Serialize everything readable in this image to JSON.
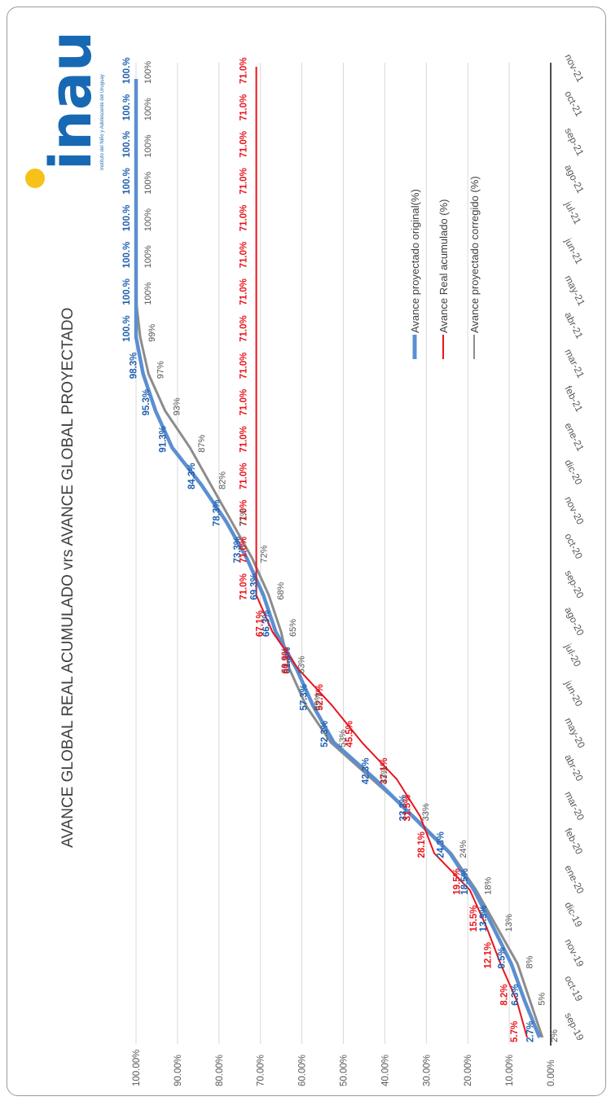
{
  "logo": {
    "word": "inau",
    "tagline": "Instituto del Niño y Adolescente del Uruguay",
    "colors": {
      "blue": "#1769b4",
      "yellow": "#f6c21a"
    }
  },
  "chart_data": {
    "type": "line",
    "title": "AVANCE GLOBAL REAL ACUMULADO vrs AVANCE GLOBAL PROYECTADO",
    "xlabel": "",
    "ylabel": "",
    "ylim": [
      0,
      100
    ],
    "grid": true,
    "legend_position": "right",
    "y_ticks": [
      "0.00%",
      "10.00%",
      "20.00%",
      "30.00%",
      "40.00%",
      "50.00%",
      "60.00%",
      "70.00%",
      "80.00%",
      "90.00%",
      "100.00%"
    ],
    "categories": [
      "sep-19",
      "oct-19",
      "nov-19",
      "dic-19",
      "ene-20",
      "feb-20",
      "mar-20",
      "abr-20",
      "may-20",
      "jun-20",
      "jul-20",
      "ago-20",
      "sep-20",
      "oct-20",
      "nov-20",
      "dic-20",
      "ene-21",
      "feb-21",
      "mar-21",
      "abr-21",
      "may-21",
      "jun-21",
      "jul-21",
      "ago-21",
      "sep-21",
      "oct-21",
      "nov-21"
    ],
    "series": [
      {
        "name": "Avance proyectado original(%)",
        "color": "#5b8fd0",
        "label_color": "#1f5fb0",
        "values": [
          2.7,
          6.3,
          9.5,
          13.9,
          18.5,
          24.3,
          33.3,
          42.3,
          52.3,
          57.3,
          61.3,
          66.3,
          69.3,
          73.3,
          78.3,
          84.3,
          91.3,
          95.3,
          98.3,
          100,
          100,
          100,
          100,
          100,
          100,
          100,
          100
        ],
        "labels": [
          "2.7%",
          "6.3%",
          "9.5%",
          "13.9%",
          "18.5%",
          "24.3%",
          "33.3%",
          "42.3%",
          "52.3%",
          "57.3%",
          "61.3%",
          "66.3%",
          "69.3%",
          "73.3%",
          "78.3%",
          "84.3%",
          "91.3%",
          "95.3%",
          "98.3%",
          "100.%",
          "100.%",
          "100.%",
          "100.%",
          "100.%",
          "100.%",
          "100.%",
          "100.%"
        ]
      },
      {
        "name": "Avance Real acumulado (%)",
        "color": "#e8141c",
        "label_color": "#e8141c",
        "values": [
          5.7,
          8.2,
          12.1,
          15.5,
          19.5,
          28.1,
          31.5,
          37.1,
          45.5,
          52.7,
          60.9,
          67.1,
          71.0,
          71.0,
          71.0,
          71.0,
          71.0,
          71.0,
          71.0,
          71.0,
          71.0,
          71.0,
          71.0,
          71.0,
          71.0,
          71.0,
          71.0
        ],
        "labels": [
          "5.7%",
          "8.2%",
          "12.1%",
          "15.5%",
          "19.5%",
          "28.1%",
          "31.5%",
          "37.1%",
          "45.5%",
          "52.7%",
          "60.9%",
          "67.1%",
          "71.0%",
          "71.0%",
          "71.0%",
          "71.0%",
          "71.0%",
          "71.0%",
          "71.0%",
          "71.0%",
          "71.0%",
          "71.0%",
          "71.0%",
          "71.0%",
          "71.0%",
          "71.0%",
          "71.0%"
        ]
      },
      {
        "name": "Avance proyectado corregido (%)",
        "color": "#8c8c8c",
        "label_color": "#555555",
        "values": [
          2,
          5,
          8,
          13,
          18,
          24,
          33,
          43,
          53,
          59,
          63,
          65,
          68,
          72,
          77,
          82,
          87,
          93,
          97,
          99,
          100,
          100,
          100,
          100,
          100,
          100,
          100
        ],
        "labels": [
          "2%",
          "5%",
          "8%",
          "13%",
          "18%",
          "24%",
          "33%",
          "43%",
          "53%",
          "59%",
          "63%",
          "65%",
          "68%",
          "72%",
          "77%",
          "82%",
          "87%",
          "93%",
          "97%",
          "99%",
          "100%",
          "100%",
          "100%",
          "100%",
          "100%",
          "100%",
          "100%"
        ]
      }
    ]
  }
}
